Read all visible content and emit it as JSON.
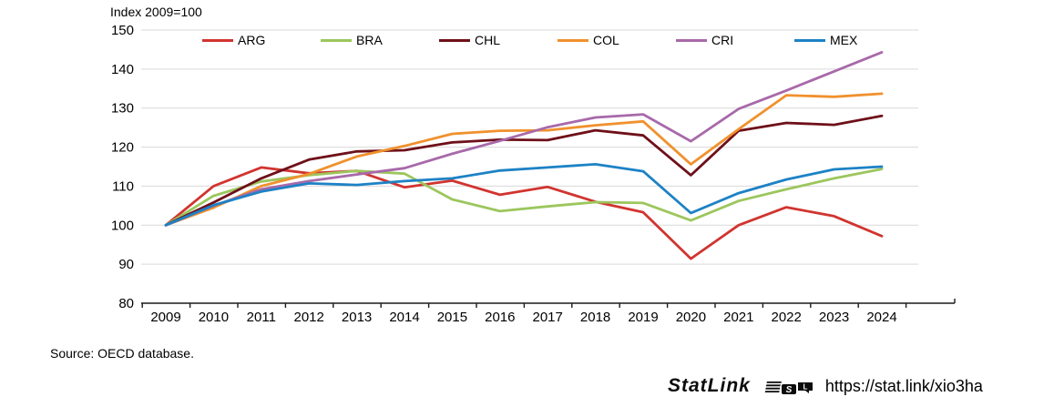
{
  "chart_data": {
    "type": "line",
    "title": "Index 2009=100",
    "x": [
      2009,
      2010,
      2011,
      2012,
      2013,
      2014,
      2015,
      2016,
      2017,
      2018,
      2019,
      2020,
      2021,
      2022,
      2023,
      2024
    ],
    "ylim": [
      80,
      150
    ],
    "ytick_step": 10,
    "grid": true,
    "legend_position": "top",
    "series": [
      {
        "name": "ARG",
        "color": "#d1342f",
        "values": [
          100,
          110.0,
          114.8,
          113.3,
          113.9,
          109.7,
          111.4,
          107.8,
          109.8,
          106.0,
          103.3,
          91.4,
          100.0,
          104.6,
          102.3,
          97.2
        ]
      },
      {
        "name": "BRA",
        "color": "#9cc65d",
        "values": [
          100,
          107.5,
          111.2,
          112.8,
          113.9,
          113.2,
          106.6,
          103.6,
          104.8,
          105.9,
          105.7,
          101.2,
          106.2,
          109.2,
          112.0,
          114.4
        ]
      },
      {
        "name": "CHL",
        "color": "#6e1019",
        "values": [
          100,
          105.8,
          112.0,
          116.8,
          118.9,
          119.2,
          121.2,
          121.9,
          121.8,
          124.3,
          123.0,
          112.8,
          124.2,
          126.2,
          125.7,
          128.0
        ]
      },
      {
        "name": "COL",
        "color": "#f0912d",
        "values": [
          100,
          104.5,
          110.0,
          113.1,
          117.6,
          120.3,
          123.4,
          124.2,
          124.3,
          125.6,
          126.6,
          115.6,
          124.6,
          133.3,
          132.9,
          133.7
        ]
      },
      {
        "name": "CRI",
        "color": "#a869aa",
        "values": [
          100,
          105.0,
          109.2,
          111.3,
          113.0,
          114.6,
          118.3,
          121.6,
          125.1,
          127.6,
          128.4,
          121.5,
          129.8,
          134.5,
          139.4,
          144.3
        ]
      },
      {
        "name": "MEX",
        "color": "#1d82c5",
        "values": [
          100,
          105.1,
          108.6,
          110.7,
          110.3,
          111.3,
          112.0,
          114.0,
          114.8,
          115.6,
          113.8,
          103.1,
          108.2,
          111.7,
          114.3,
          115.0
        ]
      }
    ],
    "grid_color": "#d9d9d9",
    "axis_color": "#1a1a1a"
  },
  "footer": {
    "source": "Source: OECD database.",
    "statlink_brand": "StatLink",
    "statlink_url": "https://stat.link/xio3ha"
  }
}
